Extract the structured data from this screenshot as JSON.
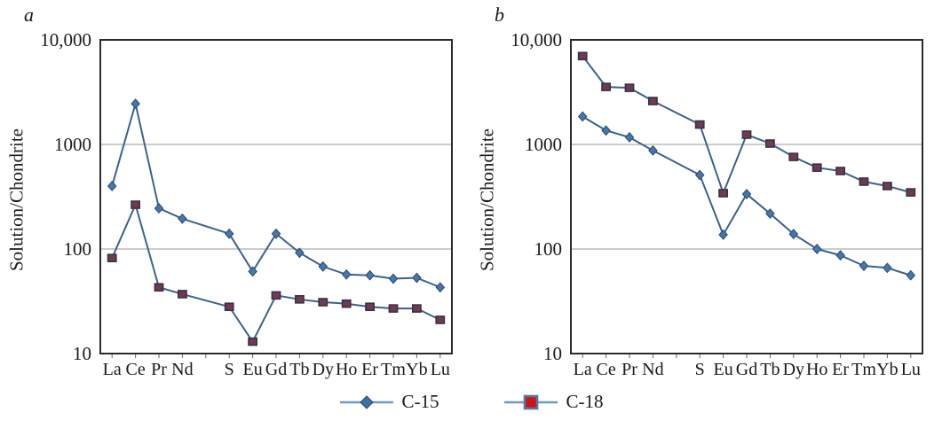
{
  "figure": {
    "panels": [
      {
        "letter": "a",
        "ylabel": "Solution/Chondrite"
      },
      {
        "letter": "b",
        "ylabel": "Solution/Chondrite"
      }
    ],
    "legend": [
      {
        "label": "C-15",
        "marker": "diamond",
        "marker_color": "#3e6fa7",
        "marker_border": "#2b4a6e",
        "line_color": "#6d9ac7"
      },
      {
        "label": "C-18",
        "marker": "square",
        "marker_color": "#cc1414",
        "marker_border": "#5577a7",
        "line_color": "#6d9ac7"
      }
    ]
  },
  "chart_data": [
    {
      "type": "line",
      "panel": "a",
      "title": "",
      "xlabel": "",
      "ylabel": "Solution/Chondrite",
      "yscale": "log",
      "ylim": [
        10,
        10000
      ],
      "y_tick_labels": [
        "10,000",
        "1000",
        "100",
        "10"
      ],
      "y_tick_values": [
        10000,
        1000,
        100,
        10
      ],
      "gridlines": [
        1000,
        100
      ],
      "x_tick_labels": [
        "La",
        "Ce",
        "Pr",
        "Nd",
        "",
        "S",
        "Eu",
        "Gd",
        "Tb",
        "Dy",
        "Ho",
        "Er",
        "Tm",
        "Yb",
        "Lu"
      ],
      "elements": [
        "La",
        "Ce",
        "Pr",
        "Nd",
        "Sm",
        "Eu",
        "Gd",
        "Tb",
        "Dy",
        "Ho",
        "Er",
        "Tm",
        "Yb",
        "Lu"
      ],
      "slot_of_element": [
        0,
        1,
        2,
        3,
        5,
        6,
        7,
        8,
        9,
        10,
        11,
        12,
        13,
        14
      ],
      "series": [
        {
          "name": "C-15",
          "values": [
            400,
            2450,
            245,
            195,
            140,
            61,
            140,
            92,
            68,
            57,
            56,
            52,
            53,
            43
          ]
        },
        {
          "name": "C-18",
          "values": [
            82,
            265,
            43,
            37,
            28,
            13,
            36,
            33,
            31,
            30,
            28,
            27,
            27,
            21
          ]
        }
      ],
      "legend_position": "bottom-shared"
    },
    {
      "type": "line",
      "panel": "b",
      "title": "",
      "xlabel": "",
      "ylabel": "Solution/Chondrite",
      "yscale": "log",
      "ylim": [
        10,
        10000
      ],
      "y_tick_labels": [
        "10,000",
        "1000",
        "100",
        "10"
      ],
      "y_tick_values": [
        10000,
        1000,
        100,
        10
      ],
      "gridlines": [
        1000,
        100
      ],
      "x_tick_labels": [
        "La",
        "Ce",
        "Pr",
        "Nd",
        "",
        "S",
        "Eu",
        "Gd",
        "Tb",
        "Dy",
        "Ho",
        "Er",
        "Tm",
        "Yb",
        "Lu"
      ],
      "elements": [
        "La",
        "Ce",
        "Pr",
        "Nd",
        "Sm",
        "Eu",
        "Gd",
        "Tb",
        "Dy",
        "Ho",
        "Er",
        "Tm",
        "Yb",
        "Lu"
      ],
      "slot_of_element": [
        0,
        1,
        2,
        3,
        5,
        6,
        7,
        8,
        9,
        10,
        11,
        12,
        13,
        14
      ],
      "series": [
        {
          "name": "C-15",
          "values": [
            1850,
            1360,
            1170,
            875,
            510,
            137,
            335,
            218,
            139,
            100,
            87,
            69,
            66,
            56
          ]
        },
        {
          "name": "C-18",
          "values": [
            7000,
            3550,
            3480,
            2600,
            1550,
            342,
            1240,
            1020,
            760,
            600,
            557,
            441,
            400,
            348
          ]
        }
      ],
      "legend_position": "bottom-shared"
    }
  ],
  "style": {
    "line_color": "#3a6292",
    "c15_marker_fill": "#4577ad",
    "c15_marker_stroke": "#2b4a6e",
    "c18_marker_fill": "#6e3c4e",
    "c18_marker_stroke": "#3c2f4a",
    "grid_color": "#9a9a9a",
    "border_color": "#2b2b2b",
    "tick_color": "#666666",
    "text_color": "#1a1a1a"
  }
}
